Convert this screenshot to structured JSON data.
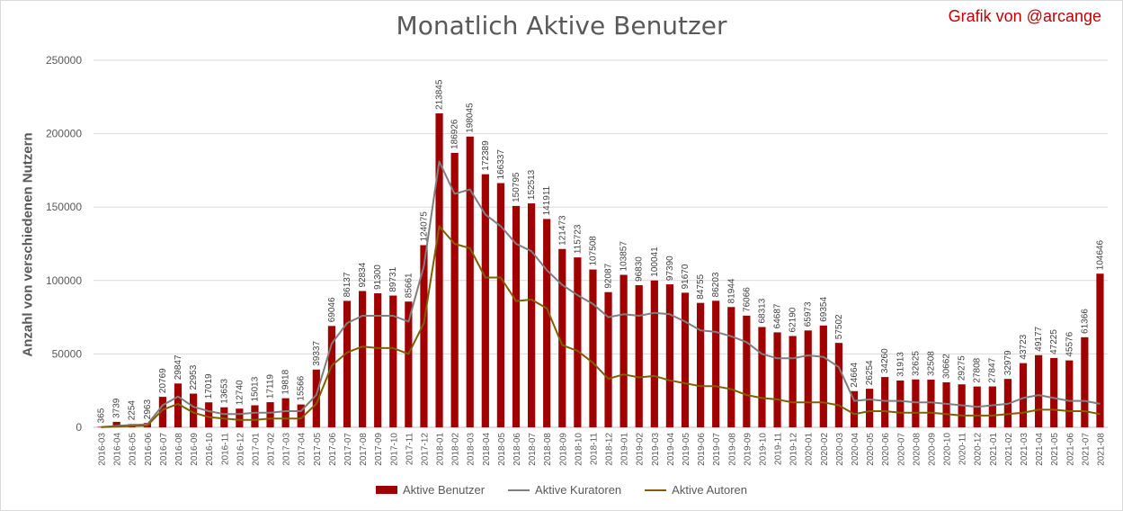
{
  "header": {
    "title": "Monatlich Aktive Benutzer",
    "credit": "Grafik von @arcange"
  },
  "colors": {
    "bars": "#a00000",
    "curators": "#7f7f7f",
    "authors": "#7f6000",
    "grid": "#d9d9d9",
    "credit": "#c00000"
  },
  "legend": {
    "bars": "Aktive Benutzer",
    "curators": "Aktive Kuratoren",
    "authors": "Aktive Autoren"
  },
  "chart_data": {
    "type": "bar",
    "title": "Monatlich Aktive Benutzer",
    "xlabel": "",
    "ylabel": "Anzahl von verschiedenen Nutzern",
    "ylim": [
      0,
      250000
    ],
    "yticks": [
      0,
      50000,
      100000,
      150000,
      200000,
      250000
    ],
    "grid": true,
    "legend_position": "bottom",
    "categories": [
      "2016-03",
      "2016-04",
      "2016-05",
      "2016-06",
      "2016-07",
      "2016-08",
      "2016-09",
      "2016-10",
      "2016-11",
      "2016-12",
      "2017-01",
      "2017-02",
      "2017-03",
      "2017-04",
      "2017-05",
      "2017-06",
      "2017-07",
      "2017-08",
      "2017-09",
      "2017-10",
      "2017-11",
      "2017-12",
      "2018-01",
      "2018-02",
      "2018-03",
      "2018-04",
      "2018-05",
      "2018-06",
      "2018-07",
      "2018-08",
      "2018-09",
      "2018-10",
      "2018-11",
      "2018-12",
      "2019-01",
      "2019-02",
      "2019-03",
      "2019-04",
      "2019-05",
      "2019-06",
      "2019-07",
      "2019-08",
      "2019-09",
      "2019-10",
      "2019-11",
      "2019-12",
      "2020-01",
      "2020-02",
      "2020-03",
      "2020-04",
      "2020-05",
      "2020-06",
      "2020-07",
      "2020-08",
      "2020-09",
      "2020-10",
      "2020-11",
      "2020-12",
      "2021-01",
      "2021-02",
      "2021-03",
      "2021-04",
      "2021-05",
      "2021-06",
      "2021-07",
      "2021-08"
    ],
    "series": [
      {
        "name": "Aktive Benutzer",
        "kind": "bar",
        "values": [
          365,
          3739,
          2254,
          2963,
          20769,
          29847,
          22953,
          17019,
          13653,
          12740,
          15013,
          17119,
          19818,
          15566,
          39337,
          69046,
          86137,
          92834,
          91300,
          89731,
          85661,
          124075,
          213845,
          186926,
          198045,
          172389,
          166337,
          150795,
          152513,
          141911,
          121473,
          115723,
          107508,
          92087,
          103857,
          96830,
          100041,
          97390,
          91670,
          84755,
          86203,
          81944,
          76066,
          68313,
          64687,
          62190,
          65973,
          69354,
          57502,
          24664,
          26254,
          34260,
          31913,
          32625,
          32508,
          30662,
          29275,
          27808,
          27847,
          32979,
          43723,
          49177,
          47225,
          45576,
          61366,
          104646
        ]
      },
      {
        "name": "Aktive Kuratoren",
        "kind": "line",
        "values": [
          200,
          1000,
          1600,
          2000,
          15000,
          21000,
          14000,
          11000,
          9000,
          9000,
          10000,
          10000,
          11000,
          11000,
          22000,
          57000,
          71000,
          76000,
          76000,
          76000,
          72000,
          110000,
          181000,
          159000,
          162000,
          145000,
          137000,
          125000,
          120000,
          107000,
          97000,
          90000,
          84000,
          75000,
          77000,
          76000,
          78000,
          77000,
          72000,
          66000,
          65000,
          62000,
          58000,
          50000,
          47000,
          47000,
          49000,
          48000,
          41000,
          18000,
          19000,
          18000,
          18000,
          17000,
          17000,
          16000,
          15000,
          14000,
          15000,
          16000,
          20000,
          22000,
          20000,
          18000,
          18000,
          16000
        ]
      },
      {
        "name": "Aktive Autoren",
        "kind": "line",
        "values": [
          100,
          500,
          900,
          1200,
          12000,
          16000,
          10000,
          7000,
          6000,
          5000,
          5000,
          6000,
          6000,
          6000,
          16000,
          42000,
          51000,
          55000,
          54000,
          54000,
          50000,
          71000,
          137000,
          125000,
          122000,
          102000,
          102000,
          86000,
          87000,
          81000,
          56000,
          52000,
          44000,
          33000,
          36000,
          34000,
          35000,
          32000,
          30000,
          28000,
          28000,
          26000,
          22000,
          20000,
          19000,
          17000,
          17000,
          17000,
          15000,
          9000,
          11000,
          11000,
          10000,
          10000,
          10000,
          9000,
          8000,
          8000,
          8000,
          9000,
          10000,
          12000,
          12000,
          11000,
          11000,
          9000
        ]
      }
    ]
  }
}
